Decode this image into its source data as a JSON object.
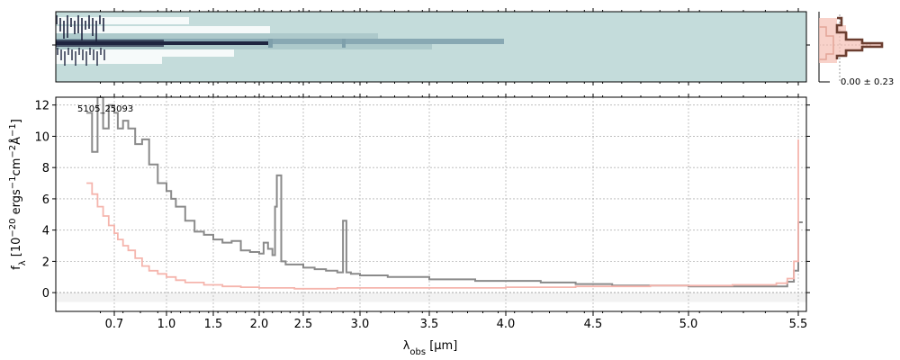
{
  "chart_data": [
    {
      "type": "image",
      "panel": "2d-spectrum",
      "colormap": [
        "#ffffff",
        "#c4dcdb",
        "#7e9fab",
        "#1f2540"
      ],
      "background_color": "#c4dcdb"
    },
    {
      "type": "line",
      "panel": "profile",
      "annotation": "0.00 ± 0.23",
      "profile_color": "#6b3e30",
      "fill_color": "#f6c3b8"
    },
    {
      "type": "line",
      "panel": "1d-spectrum",
      "object_id": "5105_25093",
      "xlabel_html": "λ<tspan baseline-shift='sub' font-size='10'>obs</tspan> [μm]",
      "ylabel_parts": [
        "f",
        "λ",
        " [10",
        "−20",
        " ergs",
        "−1",
        "cm",
        "−2",
        "Å",
        "−1",
        "]"
      ],
      "x_scale": "nonlinear (prism dispersion)",
      "xlim": [
        0.6,
        5.52
      ],
      "ylim": [
        -1.2,
        12.5
      ],
      "x_ticks": [
        0.7,
        1.0,
        1.5,
        2.0,
        2.5,
        3.0,
        3.5,
        4.0,
        4.5,
        5.0,
        5.5
      ],
      "x_tick_labels": [
        "0.7",
        "1.0",
        "1.5",
        "2.0",
        "2.5",
        "3.0",
        "3.5",
        "4.0",
        "4.5",
        "5.0",
        "5.5"
      ],
      "y_ticks": [
        0,
        2,
        4,
        6,
        8,
        10,
        12
      ],
      "grid": true,
      "series": [
        {
          "color": "#8a8a8a",
          "x": [
            0.6,
            0.62,
            0.64,
            0.66,
            0.68,
            0.7,
            0.72,
            0.75,
            0.78,
            0.82,
            0.86,
            0.9,
            0.95,
            1.0,
            1.05,
            1.1,
            1.2,
            1.3,
            1.4,
            1.5,
            1.6,
            1.7,
            1.8,
            1.9,
            2.0,
            2.05,
            2.1,
            2.15,
            2.18,
            2.2,
            2.25,
            2.3,
            2.4,
            2.5,
            2.6,
            2.7,
            2.8,
            2.85,
            2.88,
            2.92,
            3.0,
            3.2,
            3.5,
            3.8,
            4.0,
            4.2,
            4.4,
            4.6,
            4.8,
            5.0,
            5.2,
            5.4,
            5.45,
            5.48,
            5.5,
            5.52
          ],
          "y": [
            11.5,
            9.0,
            12.5,
            10.5,
            12.0,
            11.5,
            10.5,
            11.0,
            10.5,
            9.5,
            9.8,
            8.2,
            7.0,
            6.5,
            6.0,
            5.5,
            4.6,
            3.9,
            3.7,
            3.4,
            3.2,
            3.3,
            2.7,
            2.6,
            2.5,
            3.2,
            2.8,
            2.4,
            5.5,
            7.5,
            2.0,
            1.8,
            1.8,
            1.6,
            1.5,
            1.4,
            1.3,
            4.6,
            1.3,
            1.2,
            1.1,
            1.0,
            0.85,
            0.75,
            0.75,
            0.65,
            0.55,
            0.45,
            0.45,
            0.4,
            0.4,
            0.4,
            0.7,
            1.4,
            4.5,
            4.5
          ]
        },
        {
          "color": "#f5b5ad",
          "x": [
            0.6,
            0.62,
            0.64,
            0.66,
            0.68,
            0.7,
            0.72,
            0.75,
            0.78,
            0.82,
            0.86,
            0.9,
            0.95,
            1.0,
            1.1,
            1.2,
            1.4,
            1.6,
            1.8,
            2.0,
            2.2,
            2.4,
            2.6,
            2.8,
            3.0,
            3.3,
            3.6,
            4.0,
            4.4,
            4.8,
            5.2,
            5.4,
            5.45,
            5.48,
            5.5
          ],
          "y": [
            7.0,
            6.3,
            5.5,
            4.9,
            4.3,
            3.8,
            3.4,
            3.0,
            2.7,
            2.2,
            1.7,
            1.4,
            1.2,
            1.0,
            0.8,
            0.65,
            0.5,
            0.4,
            0.35,
            0.3,
            0.3,
            0.25,
            0.25,
            0.3,
            0.3,
            0.3,
            0.3,
            0.35,
            0.4,
            0.45,
            0.5,
            0.6,
            0.9,
            2.0,
            9.8
          ]
        }
      ]
    }
  ]
}
